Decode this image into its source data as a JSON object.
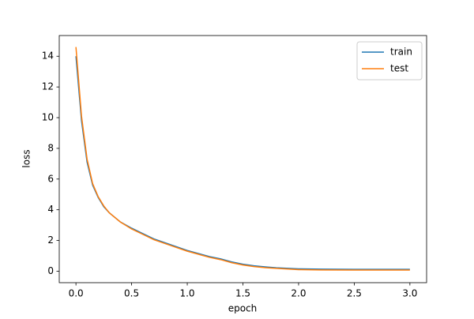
{
  "chart_data": {
    "type": "line",
    "xlabel": "epoch",
    "ylabel": "loss",
    "x": [
      0,
      0.05,
      0.1,
      0.15,
      0.2,
      0.25,
      0.3,
      0.4,
      0.5,
      0.6,
      0.7,
      0.8,
      0.9,
      1.0,
      1.1,
      1.2,
      1.3,
      1.4,
      1.5,
      1.6,
      1.7,
      1.8,
      2.0,
      2.2,
      2.5,
      3.0
    ],
    "series": [
      {
        "name": "train",
        "color": "#1f77b4",
        "values": [
          14.0,
          9.8,
          7.1,
          5.6,
          4.8,
          4.2,
          3.8,
          3.2,
          2.8,
          2.45,
          2.1,
          1.85,
          1.6,
          1.35,
          1.15,
          0.95,
          0.8,
          0.6,
          0.45,
          0.35,
          0.28,
          0.22,
          0.15,
          0.13,
          0.12,
          0.12
        ]
      },
      {
        "name": "test",
        "color": "#ff7f0e",
        "values": [
          14.6,
          10.1,
          7.3,
          5.7,
          4.85,
          4.25,
          3.8,
          3.2,
          2.75,
          2.4,
          2.05,
          1.8,
          1.55,
          1.3,
          1.1,
          0.9,
          0.75,
          0.55,
          0.4,
          0.3,
          0.23,
          0.18,
          0.1,
          0.08,
          0.07,
          0.07
        ]
      }
    ],
    "xlim": [
      -0.15,
      3.15
    ],
    "xticks": [
      {
        "value": 0,
        "label": "0.0"
      },
      {
        "value": 0.5,
        "label": "0.5"
      },
      {
        "value": 1,
        "label": "1.0"
      },
      {
        "value": 1.5,
        "label": "1.5"
      },
      {
        "value": 2,
        "label": "2.0"
      },
      {
        "value": 2.5,
        "label": "2.5"
      },
      {
        "value": 3,
        "label": "3.0"
      }
    ],
    "ylim": [
      -0.75,
      15.35
    ],
    "yticks": [
      0,
      2,
      4,
      6,
      8,
      10,
      12,
      14
    ],
    "legend": "upper right"
  }
}
